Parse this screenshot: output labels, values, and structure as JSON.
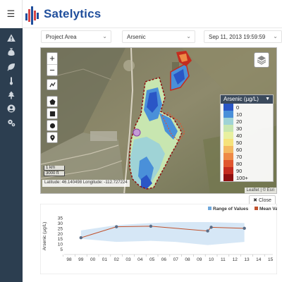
{
  "app": {
    "title": "Satelytics"
  },
  "sidebar": {
    "menu_icon": "hamburger-icon",
    "items": [
      {
        "icon": "warning-icon"
      },
      {
        "icon": "money-bag-icon"
      },
      {
        "icon": "leaf-icon"
      },
      {
        "icon": "thermometer-icon"
      },
      {
        "icon": "tree-icon"
      },
      {
        "icon": "user-circle-icon"
      },
      {
        "icon": "cogs-icon"
      }
    ]
  },
  "toolbar": {
    "area_select": "Project Area",
    "parameter_select": "Arsenic",
    "date_select": "Sep 11, 2013 19:59:59"
  },
  "map": {
    "zoom_in": "+",
    "zoom_out": "−",
    "scale_metric": "1 km",
    "scale_imperial": "3000 ft",
    "coordinates": "Latitude: 46.140498 Longitude: -112.727224",
    "attribution": "Leaflet | © Esri",
    "legend": {
      "title": "Arsenic (µg/L)",
      "items": [
        {
          "label": "0",
          "color": "#2a56c6"
        },
        {
          "label": "10",
          "color": "#4a90d9"
        },
        {
          "label": "20",
          "color": "#9fd3d6"
        },
        {
          "label": "30",
          "color": "#c8e6b0"
        },
        {
          "label": "40",
          "color": "#e8f0a0"
        },
        {
          "label": "50",
          "color": "#f6e27a"
        },
        {
          "label": "60",
          "color": "#f4b961"
        },
        {
          "label": "70",
          "color": "#ee8a46"
        },
        {
          "label": "80",
          "color": "#e0562f"
        },
        {
          "label": "90",
          "color": "#c42c1f"
        },
        {
          "label": "100+",
          "color": "#8e1010"
        }
      ]
    }
  },
  "close_button": {
    "label": "Close",
    "icon": "close-icon"
  },
  "chart_data": {
    "type": "line",
    "title": "",
    "ylabel": "Arsenic (µg/L)",
    "xlabel": "",
    "categories": [
      "98",
      "99",
      "00",
      "01",
      "02",
      "03",
      "04",
      "05",
      "06",
      "07",
      "08",
      "09",
      "10",
      "11",
      "12",
      "13",
      "14",
      "15"
    ],
    "ylim": [
      0,
      35
    ],
    "yticks": [
      5,
      10,
      15,
      20,
      25,
      30,
      35
    ],
    "legend": [
      "Range of Values",
      "Mean Value"
    ],
    "series": [
      {
        "name": "Mean Value",
        "color": "#c0522d",
        "points": [
          [
            1.0,
            16
          ],
          [
            4.0,
            26.5
          ],
          [
            6.9,
            27
          ],
          [
            11.7,
            22.5
          ],
          [
            12.0,
            26
          ],
          [
            14.8,
            25
          ]
        ]
      },
      {
        "name": "Range of Values",
        "color": "#cfe3f5",
        "upper": [
          [
            1.0,
            23
          ],
          [
            4.0,
            28
          ],
          [
            6.9,
            30
          ],
          [
            9.0,
            31
          ],
          [
            11.7,
            31
          ],
          [
            14.8,
            30
          ]
        ],
        "lower": [
          [
            1.0,
            15
          ],
          [
            4.0,
            12
          ],
          [
            6.9,
            13
          ],
          [
            9.0,
            12
          ],
          [
            11.7,
            9
          ],
          [
            14.8,
            12
          ]
        ]
      }
    ]
  }
}
